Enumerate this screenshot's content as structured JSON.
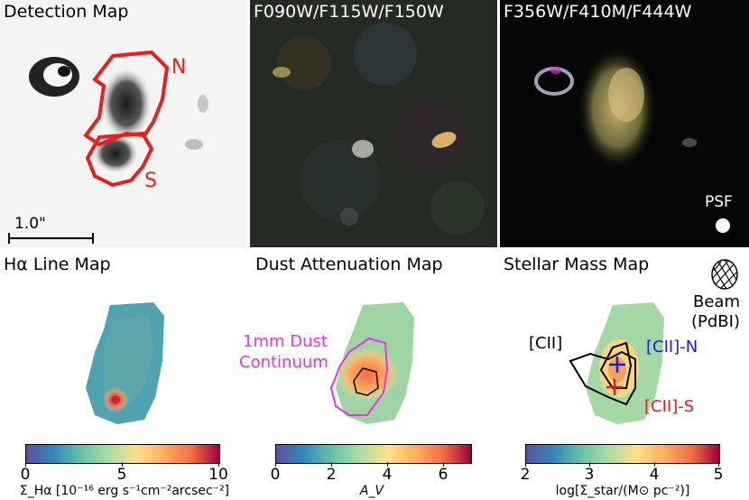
{
  "panels": {
    "detection": {
      "title": "Detection Map",
      "label_n": "N",
      "label_s": "S",
      "scalebar": "1.0\""
    },
    "short_rgb": {
      "title": "F090W/F115W/F150W"
    },
    "long_rgb": {
      "title": "F356W/F410M/F444W",
      "psf_label": "PSF"
    },
    "halpha": {
      "title": "Hα Line Map"
    },
    "dust": {
      "title": "Dust Attenuation Map",
      "annotation_line1": "1mm Dust",
      "annotation_line2": "Continuum"
    },
    "mass": {
      "title": "Stellar Mass Map",
      "beam_line1": "Beam",
      "beam_line2": "(PdBI)",
      "cii": "[CII]",
      "cii_n": "[CII]-N",
      "cii_s": "[CII]-S"
    }
  },
  "colorbars": [
    {
      "ticks": [
        "0",
        "5",
        "10"
      ],
      "label": "Σ_Hα [10⁻¹⁶ erg s⁻¹cm⁻²arcsec⁻²]",
      "range": [
        0,
        10
      ]
    },
    {
      "ticks": [
        "0",
        "2",
        "4",
        "6"
      ],
      "label": "A_V",
      "range": [
        0,
        7
      ]
    },
    {
      "ticks": [
        "2",
        "3",
        "4",
        "5"
      ],
      "label": "log[Σ_star/(M⊙ pc⁻²)]",
      "range": [
        2,
        5
      ]
    }
  ],
  "colors": {
    "contour_red": "#e8201a",
    "dust_magenta": "#e833e8",
    "cii_n_blue": "#1a1ae8",
    "cii_s_red": "#e81a1a"
  }
}
